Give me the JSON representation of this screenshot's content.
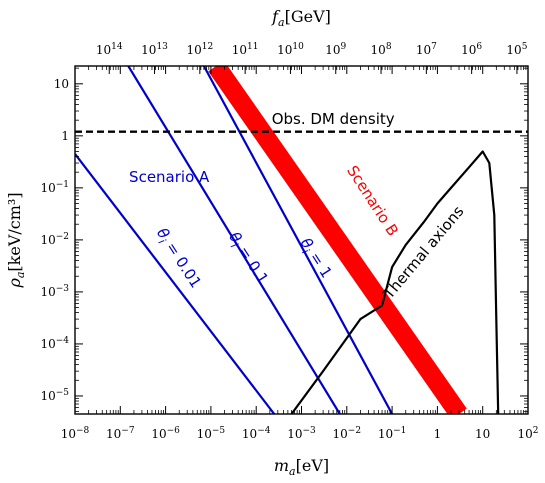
{
  "chart_data": {
    "type": "line",
    "xlabel": "m_a[eV]",
    "ylabel": "ρ_a[keV/cm³]",
    "x2label": "f_a[GeV]",
    "xscale": "log",
    "yscale": "log",
    "xlim": [
      1e-08,
      100
    ],
    "ylim": [
      4.5e-06,
      22
    ],
    "x_ticks": [
      "10^-8",
      "10^-7",
      "10^-6",
      "10^-5",
      "10^-4",
      "10^-3",
      "10^-2",
      "10^-1",
      "1",
      "10",
      "10^2"
    ],
    "y_ticks": [
      "10^-5",
      "10^-4",
      "10^-3",
      "10^-2",
      "10^-1",
      "1",
      "10"
    ],
    "x2_ticks": [
      "10^14",
      "10^13",
      "10^12",
      "10^11",
      "10^10",
      "10^9",
      "10^8",
      "10^7",
      "10^6",
      "10^5"
    ],
    "grid": false,
    "series": [
      {
        "name": "θ_i = 0.01",
        "color": "#0000cc",
        "x": [
          1e-08,
          0.00025
        ],
        "y": [
          0.45,
          4.5e-06
        ]
      },
      {
        "name": "θ_i = 0.1",
        "color": "#0000cc",
        "x": [
          1.5e-07,
          0.007
        ],
        "y": [
          22,
          4.5e-06
        ]
      },
      {
        "name": "θ_i = 1",
        "color": "#0000cc",
        "x": [
          7e-06,
          0.1
        ],
        "y": [
          22,
          4.5e-06
        ]
      },
      {
        "name": "Scenario B",
        "color": "#ff0000",
        "x": [
          1.3e-05,
          3.0
        ],
        "y": [
          22,
          4.5e-06
        ],
        "band": true
      },
      {
        "name": "Obs. DM density",
        "color": "#000000",
        "x": [
          1e-08,
          100
        ],
        "y": [
          1.2,
          1.2
        ],
        "dashed": true
      },
      {
        "name": "Thermal axions",
        "color": "#000000",
        "x": [
          0.0006,
          0.003,
          0.02,
          0.06,
          0.1,
          0.2,
          0.5,
          1,
          2,
          5,
          10,
          14,
          18,
          20,
          22
        ],
        "y": [
          4.5e-06,
          3e-05,
          0.0003,
          0.00055,
          0.003,
          0.008,
          0.022,
          0.05,
          0.1,
          0.25,
          0.5,
          0.3,
          0.03,
          0.0003,
          4.5e-06
        ]
      }
    ],
    "annotations": [
      {
        "text": "Obs. DM density",
        "x": 0.005,
        "y": 1.7,
        "color": "#000000",
        "rotate": 0
      },
      {
        "text": "Scenario A",
        "x": 1.2e-06,
        "y": 0.13,
        "color": "#0000cc",
        "rotate": 0
      },
      {
        "text": "θ_i = 0.01",
        "x": 1.6e-06,
        "y": 0.004,
        "color": "#0000cc",
        "rotate": 57
      },
      {
        "text": "θ_i = 0.1",
        "x": 5.5e-05,
        "y": 0.004,
        "color": "#0000cc",
        "rotate": 57
      },
      {
        "text": "θ_i = 1",
        "x": 0.0017,
        "y": 0.004,
        "color": "#0000cc",
        "rotate": 57
      },
      {
        "text": "Scenario B",
        "x": 0.03,
        "y": 0.05,
        "color": "#ff0000",
        "rotate": 57
      },
      {
        "text": "Thermal axions",
        "x": 0.6,
        "y": 0.005,
        "color": "#000000",
        "rotate": -50
      }
    ]
  }
}
